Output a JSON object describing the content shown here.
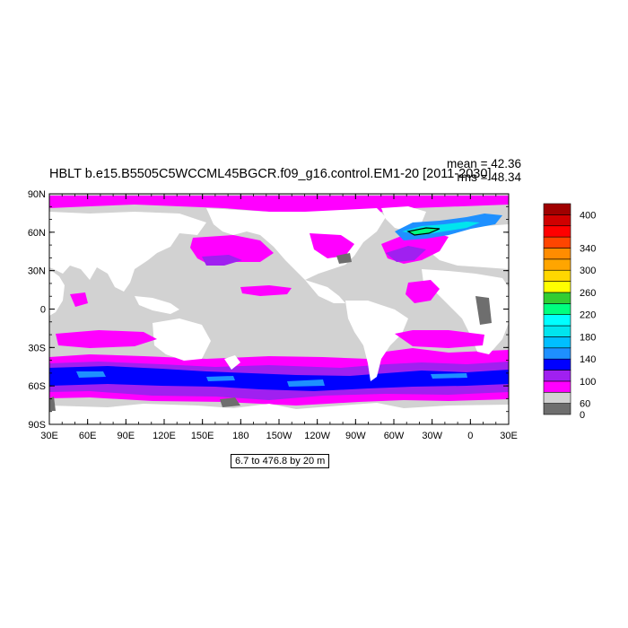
{
  "title": "HBLT b.e15.B5505C5WCCML45BGCR.f09_g16.control.EM1-20 [2011-2030]",
  "mean_label": "mean = 42.36",
  "rms_label": "rms = 48.34",
  "lat_ticks": [
    "90N",
    "60N",
    "30N",
    "0",
    "30S",
    "60S",
    "90S"
  ],
  "lon_ticks": [
    "30E",
    "60E",
    "90E",
    "120E",
    "150E",
    "180",
    "150W",
    "120W",
    "90W",
    "60W",
    "30W",
    "0",
    "30E"
  ],
  "contour_info": "6.7 to 476.8 by 20 m",
  "colorbar": {
    "labels": [
      "400",
      "340",
      "300",
      "260",
      "220",
      "180",
      "140",
      "100",
      "60",
      "0"
    ],
    "colors": [
      "#6e6e6e",
      "#d2d2d2",
      "#ff00ff",
      "#a020f0",
      "#0000ff",
      "#1e90ff",
      "#00bfff",
      "#00e5ee",
      "#00ffff",
      "#00ff7f",
      "#32cd32",
      "#ffff00",
      "#ffd700",
      "#ffa500",
      "#ff8c00",
      "#ff4500",
      "#ff0000",
      "#d00000",
      "#a00000"
    ]
  },
  "colors": {
    "land": "#ffffff",
    "low": "#d2d2d2",
    "magenta": "#ff00ff",
    "purple": "#a020f0",
    "blue": "#0000ff",
    "light_blue": "#1e90ff",
    "missing": "#6e6e6e"
  }
}
